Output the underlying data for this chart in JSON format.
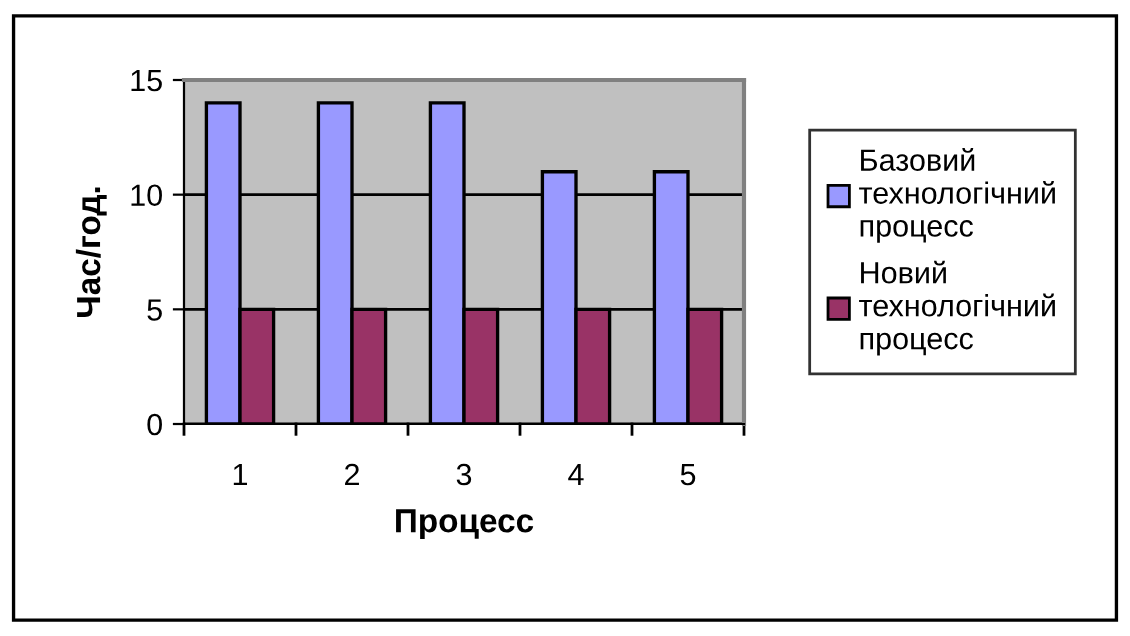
{
  "chart_data": {
    "type": "bar",
    "xlabel": "Процесс",
    "ylabel": "Час/год.",
    "categories": [
      "1",
      "2",
      "3",
      "4",
      "5"
    ],
    "series": [
      {
        "name": "Базовий\nтехнологічний\nпроцесс",
        "color": "#9999ff",
        "values": [
          14,
          14,
          14,
          11,
          11
        ]
      },
      {
        "name": "Новий\nтехнологічний\nпроцесс",
        "color": "#993366",
        "values": [
          5,
          5,
          5,
          5,
          5
        ]
      }
    ],
    "ylim": [
      0,
      15
    ],
    "yticks": [
      0,
      5,
      10,
      15
    ],
    "grid": "y",
    "legend": "right"
  }
}
